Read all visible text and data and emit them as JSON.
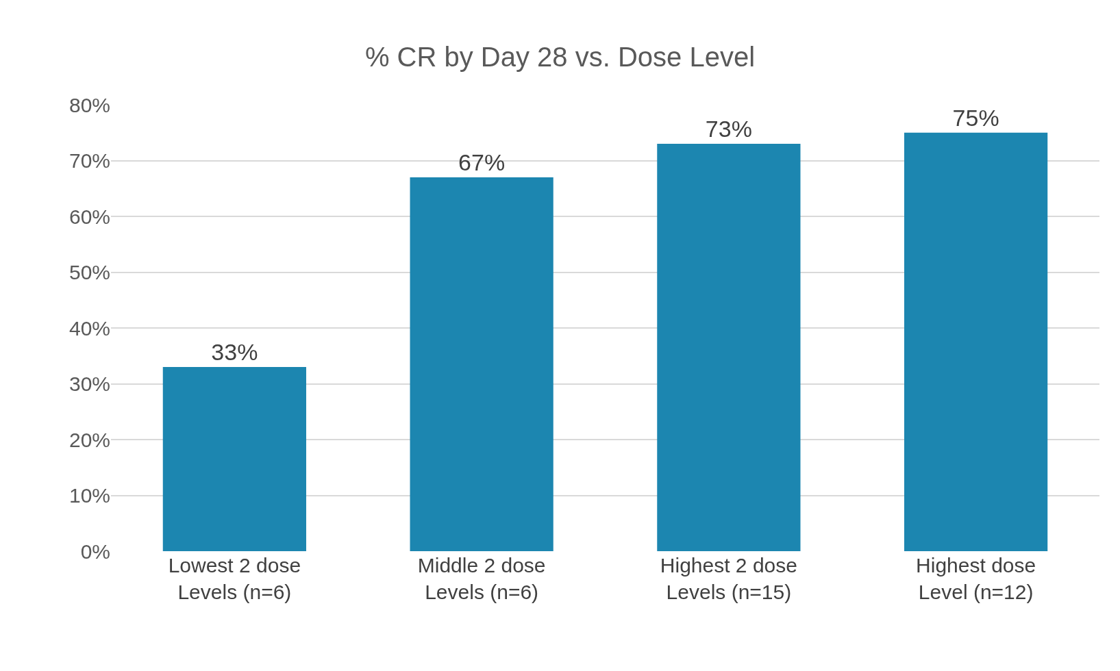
{
  "chart_data": {
    "type": "bar",
    "title": "% CR by Day 28 vs. Dose Level",
    "categories": [
      "Lowest 2 dose\nLevels (n=6)",
      "Middle 2 dose\nLevels (n=6)",
      "Highest 2 dose\nLevels (n=15)",
      "Highest dose\nLevel (n=12)"
    ],
    "values": [
      33,
      67,
      73,
      75
    ],
    "value_labels": [
      "33%",
      "67%",
      "73%",
      "75%"
    ],
    "color": "#1c86b0",
    "ylim": [
      0,
      80
    ],
    "yticks": [
      {
        "value": 0,
        "label": "0%"
      },
      {
        "value": 10,
        "label": "10%"
      },
      {
        "value": 20,
        "label": "20%"
      },
      {
        "value": 30,
        "label": "30%"
      },
      {
        "value": 40,
        "label": "40%"
      },
      {
        "value": 50,
        "label": "50%"
      },
      {
        "value": 60,
        "label": "60%"
      },
      {
        "value": 70,
        "label": "70%"
      },
      {
        "value": 80,
        "label": "80%"
      }
    ],
    "grid": "y",
    "legend": false
  }
}
